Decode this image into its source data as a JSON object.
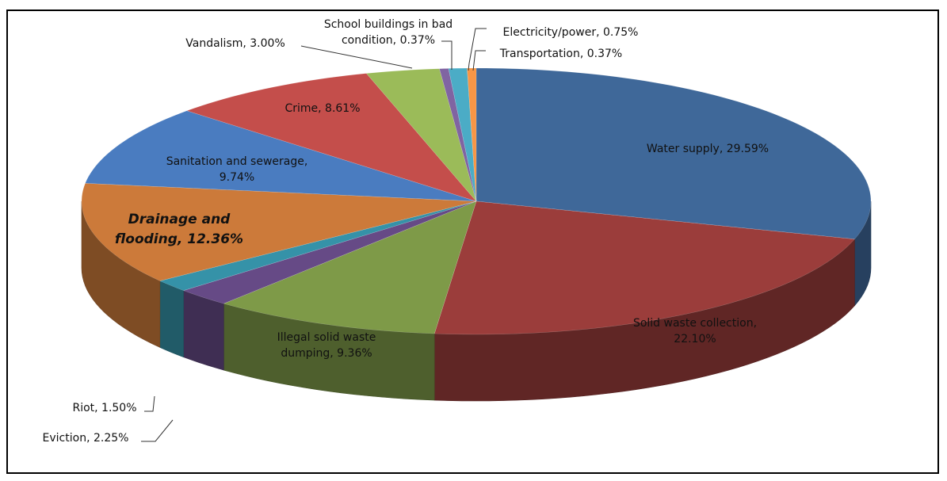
{
  "chart_data": {
    "type": "pie",
    "style": "3d-exploded-none",
    "slices": [
      {
        "label": "Water supply",
        "value": 29.59,
        "display": "29.59%",
        "color": "#3F6899"
      },
      {
        "label": "Solid waste  collection",
        "value": 22.1,
        "display": "22.10%",
        "color": "#9B3D3B"
      },
      {
        "label": "Illegal solid waste dumping",
        "value": 9.36,
        "display": "9.36%",
        "color": "#7E9A48"
      },
      {
        "label": "Eviction",
        "value": 2.25,
        "display": "2.25%",
        "color": "#664A86"
      },
      {
        "label": "Riot",
        "value": 1.5,
        "display": "1.50%",
        "color": "#3592A8"
      },
      {
        "label": "Drainage and flooding",
        "value": 12.36,
        "display": "12.36%",
        "color": "#CC7A3A"
      },
      {
        "label": "Sanitation and sewerage",
        "value": 9.74,
        "display": "9.74%",
        "color": "#4A7CC0"
      },
      {
        "label": "Crime",
        "value": 8.61,
        "display": "8.61%",
        "color": "#C44E4B"
      },
      {
        "label": "Vandalism",
        "value": 3.0,
        "display": "3.00%",
        "color": "#9BBB59"
      },
      {
        "label": "School buildings in bad condition",
        "value": 0.37,
        "display": "0.37%",
        "color": "#8064A2"
      },
      {
        "label": "Electricity/power",
        "value": 0.75,
        "display": "0.75%",
        "color": "#4BACC6"
      },
      {
        "label": "Transportation",
        "value": 0.37,
        "display": "0.37%",
        "color": "#F79646"
      }
    ],
    "labels": [
      {
        "lines": [
          "Water supply, 29.59%"
        ]
      },
      {
        "lines": [
          "Solid waste  collection,",
          "22.10%"
        ]
      },
      {
        "lines": [
          "Illegal solid waste",
          "dumping, 9.36%"
        ]
      },
      {
        "lines": [
          "Eviction, 2.25%"
        ]
      },
      {
        "lines": [
          "Riot, 1.50%"
        ]
      },
      {
        "lines": [
          "Drainage and",
          "flooding, 12.36%"
        ]
      },
      {
        "lines": [
          "Sanitation and sewerage,",
          "9.74%"
        ]
      },
      {
        "lines": [
          "Crime, 8.61%"
        ]
      },
      {
        "lines": [
          "Vandalism,  3.00%"
        ]
      },
      {
        "lines": [
          "School buildings in bad",
          "condition, 0.37%"
        ]
      },
      {
        "lines": [
          "Electricity/power, 0.75%"
        ]
      },
      {
        "lines": [
          "Transportation, 0.37%"
        ]
      }
    ],
    "title": "",
    "legend": "none"
  }
}
